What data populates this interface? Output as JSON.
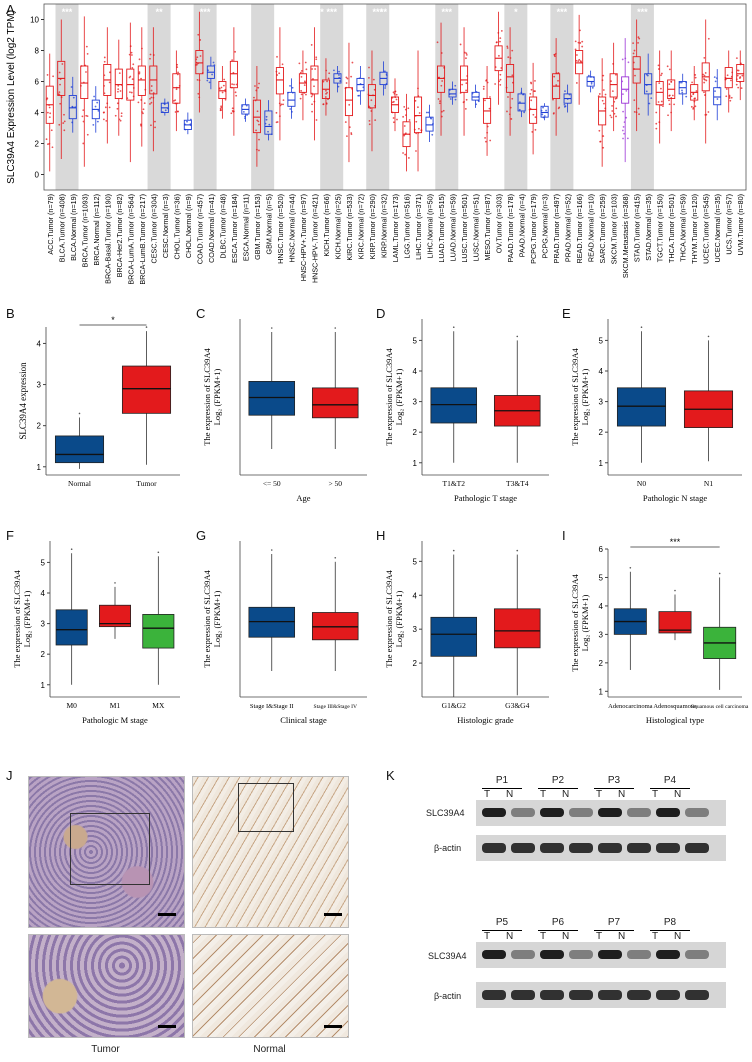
{
  "panelA": {
    "letter": "A",
    "ylabel": "SLC39A4 Expression Level (log2 TPM)",
    "yticks": [
      "0",
      "2",
      "4",
      "6",
      "8",
      "10"
    ],
    "ylim": [
      -1,
      11
    ]
  },
  "chart_data": [
    {
      "type": "box",
      "panel": "A",
      "ylabel": "SLC39A4 Expression Level (log2 TPM)",
      "ylim": [
        -1,
        11
      ],
      "series": [
        {
          "cat": "ACC.Tumor (n=79)",
          "med": 4.5,
          "q1": 3.3,
          "q3": 5.7,
          "lo": 0.2,
          "hi": 7.8,
          "c": "r",
          "sig": ""
        },
        {
          "cat": "BLCA.Tumor (n=408)",
          "med": 6.2,
          "q1": 5.1,
          "q3": 7.3,
          "lo": 1.0,
          "hi": 10.0,
          "c": "r",
          "sig": "***"
        },
        {
          "cat": "BLCA.Normal (n=19)",
          "med": 4.3,
          "q1": 3.6,
          "q3": 5.1,
          "lo": 2.7,
          "hi": 6.3,
          "c": "b",
          "sig": ""
        },
        {
          "cat": "BRCA.Tumor (n=1093)",
          "med": 5.9,
          "q1": 4.9,
          "q3": 7.0,
          "lo": 0.5,
          "hi": 10.2,
          "c": "r",
          "sig": "***"
        },
        {
          "cat": "BRCA.Normal (n=112)",
          "med": 4.2,
          "q1": 3.6,
          "q3": 4.8,
          "lo": 2.7,
          "hi": 5.7,
          "c": "b",
          "sig": ""
        },
        {
          "cat": "BRCA-Basal.Tumor (n=190)",
          "med": 6.1,
          "q1": 5.1,
          "q3": 7.1,
          "lo": 2.0,
          "hi": 9.5,
          "c": "r",
          "sig": ""
        },
        {
          "cat": "BRCA-Her2.Tumor (n=82)",
          "med": 5.8,
          "q1": 4.9,
          "q3": 6.8,
          "lo": 2.5,
          "hi": 8.7,
          "c": "r",
          "sig": ""
        },
        {
          "cat": "BRCA-LumA.Tumor (n=564)",
          "med": 5.8,
          "q1": 4.8,
          "q3": 6.8,
          "lo": 0.8,
          "hi": 9.8,
          "c": "r",
          "sig": ""
        },
        {
          "cat": "BRCA-LumB.Tumor (n=217)",
          "med": 6.1,
          "q1": 5.1,
          "q3": 7.0,
          "lo": 1.8,
          "hi": 9.5,
          "c": "r",
          "sig": ""
        },
        {
          "cat": "CESC.Tumor (n=304)",
          "med": 6.1,
          "q1": 5.2,
          "q3": 7.0,
          "lo": 1.5,
          "hi": 9.5,
          "c": "r",
          "sig": "**"
        },
        {
          "cat": "CESC.Normal (n=3)",
          "med": 4.3,
          "q1": 4.0,
          "q3": 4.6,
          "lo": 3.8,
          "hi": 4.9,
          "c": "b",
          "sig": ""
        },
        {
          "cat": "CHOL.Tumor (n=36)",
          "med": 5.6,
          "q1": 4.6,
          "q3": 6.5,
          "lo": 2.8,
          "hi": 8.0,
          "c": "r",
          "sig": "**"
        },
        {
          "cat": "CHOL.Normal (n=9)",
          "med": 3.2,
          "q1": 2.9,
          "q3": 3.5,
          "lo": 2.6,
          "hi": 4.0,
          "c": "b",
          "sig": ""
        },
        {
          "cat": "COAD.Tumor (n=457)",
          "med": 7.2,
          "q1": 6.5,
          "q3": 8.0,
          "lo": 4.0,
          "hi": 10.5,
          "c": "r",
          "sig": "***"
        },
        {
          "cat": "COAD.Normal (n=41)",
          "med": 6.6,
          "q1": 6.2,
          "q3": 7.0,
          "lo": 5.5,
          "hi": 7.6,
          "c": "b",
          "sig": ""
        },
        {
          "cat": "DLBC.Tumor (n=48)",
          "med": 5.4,
          "q1": 4.9,
          "q3": 6.0,
          "lo": 3.6,
          "hi": 7.0,
          "c": "r",
          "sig": ""
        },
        {
          "cat": "ESCA.Tumor (n=184)",
          "med": 6.5,
          "q1": 5.6,
          "q3": 7.3,
          "lo": 2.5,
          "hi": 9.5,
          "c": "r",
          "sig": "***"
        },
        {
          "cat": "ESCA.Normal (n=11)",
          "med": 4.2,
          "q1": 3.9,
          "q3": 4.5,
          "lo": 3.4,
          "hi": 4.9,
          "c": "b",
          "sig": ""
        },
        {
          "cat": "GBM.Tumor (n=153)",
          "med": 3.7,
          "q1": 2.7,
          "q3": 4.8,
          "lo": 0.5,
          "hi": 7.0,
          "c": "r",
          "sig": ""
        },
        {
          "cat": "GBM.Normal (n=5)",
          "med": 3.1,
          "q1": 2.6,
          "q3": 4.1,
          "lo": 2.2,
          "hi": 4.8,
          "c": "b",
          "sig": ""
        },
        {
          "cat": "HNSC.Tumor (n=520)",
          "med": 6.1,
          "q1": 5.2,
          "q3": 6.9,
          "lo": 2.2,
          "hi": 9.5,
          "c": "r",
          "sig": "***"
        },
        {
          "cat": "HNSC.Normal (n=44)",
          "med": 4.8,
          "q1": 4.4,
          "q3": 5.3,
          "lo": 3.6,
          "hi": 6.2,
          "c": "b",
          "sig": ""
        },
        {
          "cat": "HNSC-HPV+.Tumor (n=97)",
          "med": 5.9,
          "q1": 5.3,
          "q3": 6.5,
          "lo": 3.5,
          "hi": 8.0,
          "c": "r",
          "sig": "***"
        },
        {
          "cat": "HNSC-HPV-.Tumor (n=421)",
          "med": 6.1,
          "q1": 5.2,
          "q3": 7.0,
          "lo": 2.2,
          "hi": 9.5,
          "c": "r",
          "sig": "**"
        },
        {
          "cat": "KICH.Tumor (n=66)",
          "med": 5.5,
          "q1": 4.9,
          "q3": 6.1,
          "lo": 3.8,
          "hi": 7.5,
          "c": "r",
          "sig": "***"
        },
        {
          "cat": "KICH.Normal (n=25)",
          "med": 6.2,
          "q1": 5.9,
          "q3": 6.5,
          "lo": 5.3,
          "hi": 7.0,
          "c": "b",
          "sig": ""
        },
        {
          "cat": "KIRC.Tumor (n=533)",
          "med": 4.8,
          "q1": 3.8,
          "q3": 5.6,
          "lo": 0.8,
          "hi": 8.5,
          "c": "r",
          "sig": "***"
        },
        {
          "cat": "KIRC.Normal (n=72)",
          "med": 5.8,
          "q1": 5.4,
          "q3": 6.2,
          "lo": 4.5,
          "hi": 7.0,
          "c": "b",
          "sig": ""
        },
        {
          "cat": "KIRP.Tumor (n=290)",
          "med": 5.1,
          "q1": 4.3,
          "q3": 5.8,
          "lo": 1.5,
          "hi": 8.0,
          "c": "r",
          "sig": "***"
        },
        {
          "cat": "KIRP.Normal (n=32)",
          "med": 6.2,
          "q1": 5.8,
          "q3": 6.6,
          "lo": 5.1,
          "hi": 7.3,
          "c": "b",
          "sig": "**"
        },
        {
          "cat": "LAML.Tumor (n=173)",
          "med": 4.5,
          "q1": 4.0,
          "q3": 5.0,
          "lo": 2.8,
          "hi": 6.2,
          "c": "r",
          "sig": ""
        },
        {
          "cat": "LGG.Tumor (n=516)",
          "med": 2.6,
          "q1": 1.8,
          "q3": 3.4,
          "lo": 0.2,
          "hi": 5.2,
          "c": "r",
          "sig": ""
        },
        {
          "cat": "LIHC.Tumor (n=371)",
          "med": 3.8,
          "q1": 2.7,
          "q3": 5.0,
          "lo": 0.2,
          "hi": 8.0,
          "c": "r",
          "sig": ""
        },
        {
          "cat": "LIHC.Normal (n=50)",
          "med": 3.2,
          "q1": 2.8,
          "q3": 3.7,
          "lo": 2.1,
          "hi": 4.5,
          "c": "b",
          "sig": "**"
        },
        {
          "cat": "LUAD.Tumor (n=515)",
          "med": 6.2,
          "q1": 5.3,
          "q3": 7.0,
          "lo": 2.5,
          "hi": 9.8,
          "c": "r",
          "sig": "***"
        },
        {
          "cat": "LUAD.Normal (n=59)",
          "med": 5.2,
          "q1": 5.0,
          "q3": 5.5,
          "lo": 4.5,
          "hi": 6.0,
          "c": "b",
          "sig": ""
        },
        {
          "cat": "LUSC.Tumor (n=501)",
          "med": 6.1,
          "q1": 5.3,
          "q3": 7.0,
          "lo": 2.5,
          "hi": 9.5,
          "c": "r",
          "sig": "***"
        },
        {
          "cat": "LUSC.Normal (n=51)",
          "med": 5.0,
          "q1": 4.8,
          "q3": 5.3,
          "lo": 4.3,
          "hi": 5.8,
          "c": "b",
          "sig": ""
        },
        {
          "cat": "MESO.Tumor (n=87)",
          "med": 4.1,
          "q1": 3.3,
          "q3": 4.9,
          "lo": 1.2,
          "hi": 7.0,
          "c": "r",
          "sig": ""
        },
        {
          "cat": "OV.Tumor (n=303)",
          "med": 7.5,
          "q1": 6.7,
          "q3": 8.3,
          "lo": 4.5,
          "hi": 10.5,
          "c": "r",
          "sig": ""
        },
        {
          "cat": "PAAD.Tumor (n=178)",
          "med": 6.3,
          "q1": 5.3,
          "q3": 7.1,
          "lo": 2.5,
          "hi": 9.5,
          "c": "r",
          "sig": "*"
        },
        {
          "cat": "PAAD.Normal (n=4)",
          "med": 4.6,
          "q1": 4.1,
          "q3": 5.2,
          "lo": 3.7,
          "hi": 5.6,
          "c": "b",
          "sig": ""
        },
        {
          "cat": "PCPG.Tumor (n=179)",
          "med": 4.2,
          "q1": 3.3,
          "q3": 5.0,
          "lo": 1.3,
          "hi": 7.2,
          "c": "r",
          "sig": ""
        },
        {
          "cat": "PCPG.Normal (n=3)",
          "med": 4.0,
          "q1": 3.7,
          "q3": 4.4,
          "lo": 3.5,
          "hi": 4.6,
          "c": "b",
          "sig": ""
        },
        {
          "cat": "PRAD.Tumor (n=497)",
          "med": 5.7,
          "q1": 4.9,
          "q3": 6.5,
          "lo": 2.5,
          "hi": 8.8,
          "c": "r",
          "sig": "***"
        },
        {
          "cat": "PRAD.Normal (n=52)",
          "med": 4.9,
          "q1": 4.6,
          "q3": 5.2,
          "lo": 4.0,
          "hi": 5.8,
          "c": "b",
          "sig": ""
        },
        {
          "cat": "READ.Tumor (n=166)",
          "med": 7.2,
          "q1": 6.5,
          "q3": 8.0,
          "lo": 4.5,
          "hi": 10.3,
          "c": "r",
          "sig": "***"
        },
        {
          "cat": "READ.Normal (n=10)",
          "med": 6.0,
          "q1": 5.7,
          "q3": 6.3,
          "lo": 5.3,
          "hi": 6.7,
          "c": "b",
          "sig": ""
        },
        {
          "cat": "SARC.Tumor (n=259)",
          "med": 4.1,
          "q1": 3.2,
          "q3": 5.0,
          "lo": 0.5,
          "hi": 7.5,
          "c": "r",
          "sig": ""
        },
        {
          "cat": "SKCM.Tumor (n=103)",
          "med": 5.8,
          "q1": 5.0,
          "q3": 6.5,
          "lo": 2.8,
          "hi": 8.5,
          "c": "r",
          "sig": ""
        },
        {
          "cat": "SKCM.Metastasis (n=368)",
          "med": 5.5,
          "q1": 4.6,
          "q3": 6.3,
          "lo": 0.8,
          "hi": 8.8,
          "c": "p",
          "sig": ""
        },
        {
          "cat": "STAD.Tumor (n=415)",
          "med": 6.8,
          "q1": 5.9,
          "q3": 7.6,
          "lo": 2.8,
          "hi": 10.0,
          "c": "r",
          "sig": "***"
        },
        {
          "cat": "STAD.Normal (n=35)",
          "med": 5.8,
          "q1": 5.2,
          "q3": 6.5,
          "lo": 3.8,
          "hi": 7.8,
          "c": "b",
          "sig": ""
        },
        {
          "cat": "TGCT.Tumor (n=150)",
          "med": 5.3,
          "q1": 4.5,
          "q3": 6.0,
          "lo": 2.0,
          "hi": 8.0,
          "c": "r",
          "sig": ""
        },
        {
          "cat": "THCA.Tumor (n=501)",
          "med": 5.5,
          "q1": 4.9,
          "q3": 6.1,
          "lo": 2.8,
          "hi": 8.0,
          "c": "r",
          "sig": ""
        },
        {
          "cat": "THCA.Normal (n=59)",
          "med": 5.6,
          "q1": 5.2,
          "q3": 6.0,
          "lo": 4.5,
          "hi": 6.5,
          "c": "b",
          "sig": ""
        },
        {
          "cat": "THYM.Tumor (n=120)",
          "med": 5.3,
          "q1": 4.8,
          "q3": 5.8,
          "lo": 3.5,
          "hi": 7.0,
          "c": "r",
          "sig": ""
        },
        {
          "cat": "UCEC.Tumor (n=545)",
          "med": 6.3,
          "q1": 5.4,
          "q3": 7.2,
          "lo": 2.0,
          "hi": 10.0,
          "c": "r",
          "sig": "***"
        },
        {
          "cat": "UCEC.Normal (n=35)",
          "med": 5.0,
          "q1": 4.5,
          "q3": 5.6,
          "lo": 3.5,
          "hi": 6.8,
          "c": "b",
          "sig": ""
        },
        {
          "cat": "UCS.Tumor (n=57)",
          "med": 6.2,
          "q1": 5.6,
          "q3": 6.9,
          "lo": 4.0,
          "hi": 8.0,
          "c": "r",
          "sig": ""
        },
        {
          "cat": "UVM.Tumor (n=80)",
          "med": 6.5,
          "q1": 6.0,
          "q3": 7.1,
          "lo": 4.8,
          "hi": 8.0,
          "c": "r",
          "sig": ""
        }
      ]
    },
    {
      "type": "box",
      "panel": "B",
      "ylabel": "SLC39A4 expression",
      "xlabel": "",
      "ylim": [
        0.8,
        4.4
      ],
      "yticks": [
        "1",
        "2",
        "3",
        "4"
      ],
      "groups": [
        {
          "label": "Normal",
          "med": 1.3,
          "q1": 1.1,
          "q3": 1.75,
          "lo": 0.95,
          "hi": 2.2,
          "color": "#0a4a8a"
        },
        {
          "label": "Tumor",
          "med": 2.9,
          "q1": 2.3,
          "q3": 3.45,
          "lo": 1.05,
          "hi": 4.3,
          "color": "#e31a1c"
        }
      ],
      "sig": "*"
    },
    {
      "type": "box",
      "panel": "C",
      "ylabel1": "The expression of SLC39A4",
      "ylabel2": "Log₂ (FPKM+1)",
      "xlabel": "Age",
      "ylim": [
        0,
        6
      ],
      "yticks": [],
      "groups": [
        {
          "label": "<= 50",
          "med": 2.98,
          "q1": 2.3,
          "q3": 3.6,
          "lo": 1.0,
          "hi": 5.5,
          "color": "#0a4a8a"
        },
        {
          "label": "> 50",
          "med": 2.7,
          "q1": 2.2,
          "q3": 3.35,
          "lo": 1.0,
          "hi": 5.5,
          "color": "#e31a1c"
        }
      ]
    },
    {
      "type": "box",
      "panel": "D",
      "ylabel1": "The expression of SLC39A4",
      "ylabel2": "Log₂ (FPKM+1)",
      "xlabel": "Pathologic T stage",
      "ylim": [
        0.6,
        5.7
      ],
      "yticks": [
        "1",
        "2",
        "3",
        "4",
        "5"
      ],
      "groups": [
        {
          "label": "T1&T2",
          "med": 2.9,
          "q1": 2.3,
          "q3": 3.45,
          "lo": 1.0,
          "hi": 5.3,
          "color": "#0a4a8a"
        },
        {
          "label": "T3&T4",
          "med": 2.7,
          "q1": 2.2,
          "q3": 3.2,
          "lo": 1.0,
          "hi": 5.0,
          "color": "#e31a1c"
        }
      ]
    },
    {
      "type": "box",
      "panel": "E",
      "ylabel1": "The expression of SLC39A4",
      "ylabel2": "Log₂ (FPKM+1)",
      "xlabel": "Pathologic N stage",
      "ylim": [
        0.6,
        5.7
      ],
      "yticks": [
        "1",
        "2",
        "3",
        "4",
        "5"
      ],
      "groups": [
        {
          "label": "N0",
          "med": 2.85,
          "q1": 2.2,
          "q3": 3.45,
          "lo": 1.0,
          "hi": 5.3,
          "color": "#0a4a8a"
        },
        {
          "label": "N1",
          "med": 2.75,
          "q1": 2.15,
          "q3": 3.35,
          "lo": 1.05,
          "hi": 5.0,
          "color": "#e31a1c"
        }
      ]
    },
    {
      "type": "box",
      "panel": "F",
      "ylabel1": "The expression of SLC39A4",
      "ylabel2": "Log₂ (FPKM+1)",
      "xlabel": "Pathologic M stage",
      "ylim": [
        0.6,
        5.7
      ],
      "yticks": [
        "1",
        "2",
        "3",
        "4",
        "5"
      ],
      "groups": [
        {
          "label": "M0",
          "med": 2.8,
          "q1": 2.3,
          "q3": 3.45,
          "lo": 1.0,
          "hi": 5.3,
          "color": "#0a4a8a"
        },
        {
          "label": "M1",
          "med": 3.0,
          "q1": 2.9,
          "q3": 3.6,
          "lo": 2.5,
          "hi": 4.2,
          "color": "#e31a1c"
        },
        {
          "label": "MX",
          "med": 2.85,
          "q1": 2.2,
          "q3": 3.3,
          "lo": 1.0,
          "hi": 5.2,
          "color": "#3bb33b"
        }
      ]
    },
    {
      "type": "box",
      "panel": "G",
      "ylabel1": "The expression of SLC39A4",
      "ylabel2": "Log₂ (FPKM+1)",
      "xlabel": "Clinical stage",
      "ylim": [
        0,
        6
      ],
      "yticks": [],
      "groups": [
        {
          "label": "Stage I&Stage II",
          "med": 2.9,
          "q1": 2.3,
          "q3": 3.45,
          "lo": 1.0,
          "hi": 5.5,
          "color": "#0a4a8a"
        },
        {
          "label": "Stage III&Stage IV",
          "med": 2.7,
          "q1": 2.2,
          "q3": 3.25,
          "lo": 1.0,
          "hi": 5.2,
          "color": "#e31a1c"
        }
      ]
    },
    {
      "type": "box",
      "panel": "H",
      "ylabel1": "The expression of SLC39A4",
      "ylabel2": "Log₂ (FPKM+1)",
      "xlabel": "Histologic grade",
      "ylim": [
        1,
        5.6
      ],
      "yticks": [
        "2",
        "3",
        "4",
        "5"
      ],
      "groups": [
        {
          "label": "G1&G2",
          "med": 2.85,
          "q1": 2.2,
          "q3": 3.35,
          "lo": 1.0,
          "hi": 5.2,
          "color": "#0a4a8a"
        },
        {
          "label": "G3&G4",
          "med": 2.95,
          "q1": 2.45,
          "q3": 3.6,
          "lo": 1.05,
          "hi": 5.2,
          "color": "#e31a1c"
        }
      ]
    },
    {
      "type": "box",
      "panel": "I",
      "ylabel1": "The expression of SLC39A4",
      "ylabel2": "Log₂ (FPKM+1)",
      "xlabel": "Histological type",
      "ylim": [
        0.8,
        6
      ],
      "yticks": [
        "1",
        "2",
        "3",
        "4",
        "5",
        "6"
      ],
      "groups": [
        {
          "label": "Adenocarcinoma",
          "med": 3.45,
          "q1": 3.0,
          "q3": 3.9,
          "lo": 1.75,
          "hi": 5.2,
          "color": "#0a4a8a"
        },
        {
          "label": "Adenosquamous",
          "med": 3.15,
          "q1": 3.05,
          "q3": 3.8,
          "lo": 2.8,
          "hi": 4.4,
          "color": "#e31a1c"
        },
        {
          "label": "Squamous cell carcinoma",
          "med": 2.7,
          "q1": 2.15,
          "q3": 3.25,
          "lo": 1.05,
          "hi": 5.0,
          "color": "#3bb33b"
        }
      ],
      "sig": "***"
    }
  ],
  "panelJ": {
    "letter": "J",
    "left_caption": "Tumor",
    "right_caption": "Normal"
  },
  "panelK": {
    "letter": "K",
    "top_patients": [
      "P1",
      "P2",
      "P3",
      "P4"
    ],
    "bottom_patients": [
      "P5",
      "P6",
      "P7",
      "P8"
    ],
    "T": "T",
    "N": "N",
    "row1": "SLC39A4",
    "row2": "β-actin"
  }
}
